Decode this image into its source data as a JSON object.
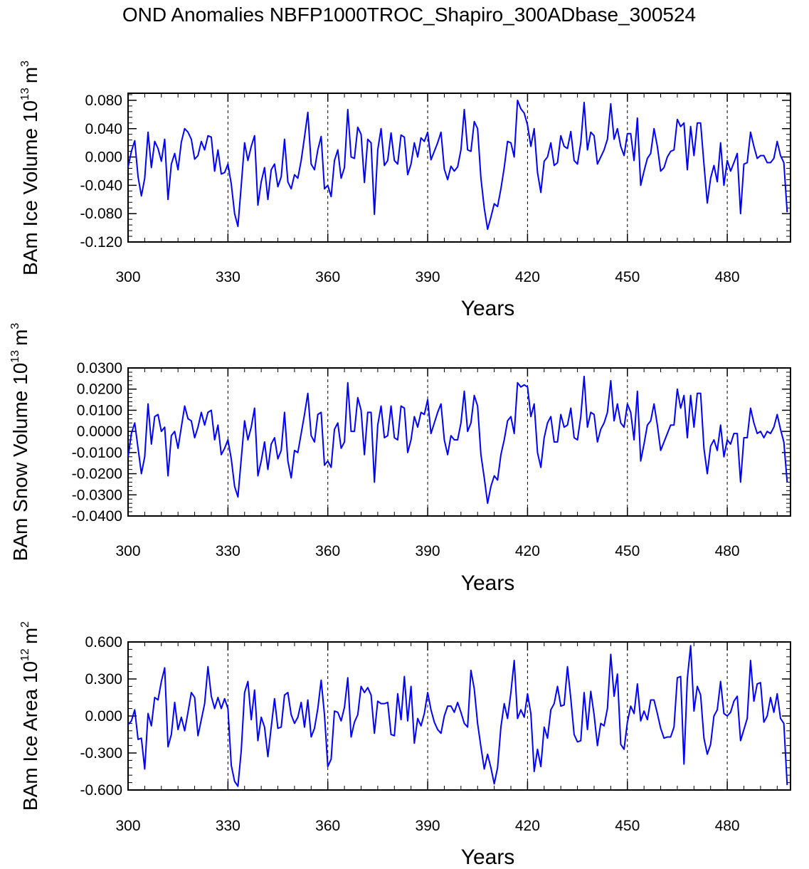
{
  "title": "OND Anomalies NBFP1000TROC_Shapiro_300ADbase_300524",
  "chart_data": [
    {
      "type": "line",
      "ylabel": "BAm Ice Volume 10",
      "ylabel_exp": "13",
      "ylabel_unit": "m",
      "ylabel_unit_exp": "3",
      "xlabel": "Years",
      "xlim": [
        300,
        499
      ],
      "ylim": [
        -0.12,
        0.09
      ],
      "yticks": [
        -0.12,
        -0.08,
        -0.04,
        0.0,
        0.04,
        0.08
      ],
      "ytick_labels": [
        "-0.120",
        "-0.080",
        "-0.040",
        "0.000",
        "0.040",
        "0.080"
      ],
      "xticks": [
        300,
        330,
        360,
        390,
        420,
        450,
        480
      ],
      "xtick_labels": [
        "300",
        "330",
        "360",
        "390",
        "420",
        "450",
        "480"
      ],
      "ref_lines": [
        330,
        360,
        390,
        420,
        450,
        480
      ],
      "series": [
        {
          "name": "BAm Ice Volume",
          "color": "#0000ff",
          "x_start": 300,
          "values": [
            -0.014,
            0.008,
            0.023,
            -0.028,
            -0.055,
            -0.03,
            0.035,
            -0.015,
            0.022,
            0.012,
            -0.006,
            0.025,
            -0.06,
            -0.01,
            0.005,
            -0.018,
            0.021,
            0.04,
            0.035,
            0.025,
            -0.003,
            0.002,
            0.022,
            0.01,
            0.03,
            0.028,
            -0.02,
            0.01,
            -0.024,
            -0.022,
            -0.01,
            -0.038,
            -0.08,
            -0.098,
            -0.04,
            0.02,
            -0.005,
            0.015,
            0.03,
            -0.068,
            -0.035,
            -0.015,
            -0.06,
            -0.018,
            -0.01,
            -0.042,
            -0.028,
            0.025,
            -0.035,
            -0.045,
            -0.025,
            -0.03,
            -0.005,
            0.028,
            0.063,
            -0.01,
            -0.018,
            0.01,
            0.029,
            -0.045,
            -0.04,
            -0.056,
            -0.005,
            0.01,
            -0.03,
            -0.015,
            0.067,
            0.0,
            -0.002,
            0.042,
            0.032,
            -0.036,
            0.025,
            0.02,
            -0.081,
            0.01,
            0.04,
            -0.012,
            -0.005,
            0.034,
            -0.005,
            -0.01,
            0.031,
            0.028,
            -0.025,
            -0.01,
            0.02,
            0.0,
            0.027,
            0.022,
            0.035,
            -0.004,
            0.008,
            0.02,
            0.035,
            -0.017,
            -0.032,
            -0.013,
            -0.02,
            -0.014,
            0.01,
            0.067,
            0.01,
            0.008,
            0.05,
            0.04,
            -0.03,
            -0.072,
            -0.102,
            -0.085,
            -0.066,
            -0.07,
            -0.045,
            -0.015,
            0.022,
            0.02,
            0.0,
            0.08,
            0.068,
            0.062,
            0.045,
            0.015,
            0.04,
            -0.022,
            -0.05,
            -0.006,
            0.0,
            0.02,
            -0.012,
            -0.008,
            0.03,
            0.015,
            0.012,
            0.036,
            -0.005,
            -0.01,
            0.02,
            0.077,
            0.01,
            0.035,
            0.03,
            -0.01,
            0.0,
            0.01,
            0.025,
            0.075,
            0.025,
            0.04,
            0.015,
            0.002,
            0.033,
            0.033,
            -0.005,
            0.055,
            -0.04,
            -0.02,
            -0.002,
            0.005,
            0.04,
            0.015,
            -0.02,
            -0.015,
            0.0,
            0.008,
            0.01,
            0.053,
            0.043,
            0.048,
            -0.018,
            0.043,
            0.002,
            0.048,
            0.048,
            -0.01,
            -0.065,
            -0.03,
            -0.012,
            -0.035,
            0.02,
            -0.04,
            -0.005,
            -0.02,
            -0.008,
            0.005,
            -0.08,
            -0.01,
            -0.008,
            0.035,
            0.015,
            -0.002,
            0.002,
            0.002,
            -0.008,
            -0.008,
            -0.002,
            0.022,
            0.002,
            -0.008,
            -0.078
          ]
        }
      ]
    },
    {
      "type": "line",
      "ylabel": "BAm Snow Volume 10",
      "ylabel_exp": "13",
      "ylabel_unit": "m",
      "ylabel_unit_exp": "3",
      "xlabel": "Years",
      "xlim": [
        300,
        499
      ],
      "ylim": [
        -0.04,
        0.03
      ],
      "yticks": [
        -0.04,
        -0.03,
        -0.02,
        -0.01,
        0.0,
        0.01,
        0.02,
        0.03
      ],
      "ytick_labels": [
        "-0.0400",
        "-0.0300",
        "-0.0200",
        "-0.0100",
        "0.0000",
        "0.0100",
        "0.0200",
        "0.0300"
      ],
      "xticks": [
        300,
        330,
        360,
        390,
        420,
        450,
        480
      ],
      "xtick_labels": [
        "300",
        "330",
        "360",
        "390",
        "420",
        "450",
        "480"
      ],
      "ref_lines": [
        330,
        360,
        390,
        420,
        450,
        480
      ],
      "series": [
        {
          "name": "BAm Snow Volume",
          "color": "#0000ff",
          "x_start": 300,
          "values": [
            -0.012,
            -0.001,
            0.004,
            -0.008,
            -0.02,
            -0.012,
            0.013,
            -0.006,
            0.007,
            0.008,
            0.0,
            0.002,
            -0.021,
            -0.002,
            0.0,
            -0.008,
            0.002,
            0.012,
            0.006,
            0.005,
            -0.003,
            0.002,
            0.009,
            0.003,
            0.009,
            0.01,
            -0.004,
            0.003,
            -0.011,
            -0.008,
            -0.004,
            -0.013,
            -0.026,
            -0.031,
            -0.013,
            0.005,
            -0.004,
            0.002,
            0.011,
            -0.021,
            -0.014,
            -0.005,
            -0.018,
            -0.006,
            -0.003,
            -0.013,
            -0.009,
            0.009,
            -0.014,
            -0.022,
            -0.009,
            -0.01,
            -0.001,
            0.008,
            0.018,
            -0.002,
            -0.005,
            0.008,
            0.009,
            -0.016,
            -0.014,
            -0.017,
            0.001,
            0.004,
            -0.008,
            -0.005,
            0.023,
            0.0,
            0.0,
            0.016,
            0.01,
            -0.011,
            0.009,
            0.009,
            -0.024,
            0.003,
            0.012,
            -0.003,
            -0.002,
            0.012,
            -0.003,
            -0.004,
            0.012,
            0.011,
            -0.01,
            -0.004,
            0.007,
            0.002,
            0.009,
            0.008,
            0.015,
            -0.001,
            0.004,
            0.009,
            0.013,
            -0.004,
            -0.011,
            -0.002,
            -0.004,
            -0.004,
            0.004,
            0.019,
            0.0,
            0.004,
            0.017,
            0.012,
            -0.011,
            -0.022,
            -0.034,
            -0.026,
            -0.021,
            -0.023,
            -0.011,
            -0.004,
            0.005,
            0.007,
            -0.001,
            0.023,
            0.021,
            0.022,
            0.021,
            0.007,
            0.013,
            -0.01,
            -0.017,
            -0.003,
            0.004,
            0.007,
            -0.005,
            -0.005,
            0.008,
            0.002,
            0.003,
            0.011,
            -0.003,
            -0.004,
            0.007,
            0.026,
            0.002,
            0.009,
            0.008,
            -0.005,
            0.001,
            0.004,
            0.009,
            0.024,
            0.005,
            0.013,
            0.004,
            0.002,
            0.013,
            0.009,
            -0.004,
            0.019,
            -0.014,
            -0.006,
            0.003,
            0.005,
            0.013,
            0.003,
            -0.009,
            -0.005,
            -0.001,
            0.003,
            0.003,
            0.02,
            0.011,
            0.017,
            -0.003,
            0.017,
            0.002,
            0.018,
            0.018,
            -0.008,
            -0.02,
            -0.007,
            -0.004,
            -0.009,
            0.003,
            -0.012,
            -0.004,
            -0.006,
            -0.001,
            -0.001,
            -0.024,
            -0.003,
            -0.003,
            0.011,
            0.004,
            -0.001,
            0.0,
            -0.003,
            0.0,
            -0.001,
            0.002,
            0.008,
            0.001,
            -0.005,
            -0.024
          ]
        }
      ]
    },
    {
      "type": "line",
      "ylabel": "BAm Ice Area 10",
      "ylabel_exp": "12",
      "ylabel_unit": "m",
      "ylabel_unit_exp": "2",
      "xlabel": "Years",
      "xlim": [
        300,
        499
      ],
      "ylim": [
        -0.6,
        0.6
      ],
      "yticks": [
        -0.6,
        -0.3,
        0.0,
        0.3,
        0.6
      ],
      "ytick_labels": [
        "-0.600",
        "-0.300",
        "0.000",
        "0.300",
        "0.600"
      ],
      "xticks": [
        300,
        330,
        360,
        390,
        420,
        450,
        480
      ],
      "xtick_labels": [
        "300",
        "330",
        "360",
        "390",
        "420",
        "450",
        "480"
      ],
      "ref_lines": [
        330,
        360,
        390,
        420,
        450,
        480
      ],
      "series": [
        {
          "name": "BAm Ice Area",
          "color": "#0000ff",
          "x_start": 300,
          "values": [
            -0.07,
            -0.04,
            0.05,
            -0.19,
            -0.18,
            -0.43,
            0.02,
            -0.08,
            0.15,
            0.13,
            0.28,
            0.39,
            -0.25,
            -0.15,
            0.11,
            -0.11,
            -0.01,
            -0.12,
            0.03,
            0.19,
            0.15,
            -0.16,
            -0.03,
            0.1,
            0.4,
            0.16,
            0.06,
            0.15,
            0.06,
            0.14,
            0.06,
            -0.4,
            -0.53,
            -0.57,
            -0.28,
            0.19,
            0.28,
            -0.03,
            0.21,
            -0.2,
            -0.01,
            -0.09,
            -0.33,
            -0.09,
            0.14,
            -0.1,
            -0.09,
            0.17,
            0.19,
            0.01,
            -0.06,
            -0.01,
            0.11,
            -0.09,
            0.13,
            -0.17,
            -0.1,
            0.06,
            0.29,
            0.01,
            -0.41,
            -0.35,
            0.04,
            0.03,
            -0.04,
            0.07,
            0.31,
            -0.17,
            -0.05,
            0.01,
            0.24,
            0.19,
            0.23,
            0.17,
            -0.14,
            0.12,
            0.1,
            0.1,
            0.11,
            -0.15,
            -0.16,
            0.18,
            -0.03,
            0.32,
            -0.04,
            0.24,
            -0.22,
            -0.02,
            -0.08,
            0.02,
            0.19,
            0.05,
            -0.05,
            -0.11,
            -0.14,
            0.0,
            0.08,
            0.08,
            0.03,
            0.11,
            0.03,
            -0.06,
            -0.09,
            0.37,
            0.22,
            -0.06,
            -0.25,
            -0.43,
            -0.31,
            -0.42,
            -0.55,
            -0.42,
            -0.09,
            0.1,
            -0.02,
            0.19,
            0.45,
            -0.02,
            0.05,
            -0.01,
            0.18,
            0.02,
            -0.45,
            -0.27,
            -0.41,
            -0.09,
            -0.18,
            0.05,
            0.1,
            0.24,
            0.08,
            0.09,
            0.4,
            0.14,
            -0.15,
            -0.21,
            -0.2,
            0.19,
            -0.11,
            0.2,
            0.01,
            -0.24,
            -0.06,
            -0.08,
            0.06,
            0.5,
            0.16,
            0.34,
            -0.23,
            -0.27,
            -0.05,
            0.08,
            0.02,
            0.26,
            -0.04,
            0.04,
            -0.03,
            0.13,
            0.13,
            0.02,
            -0.1,
            -0.18,
            -0.17,
            -0.17,
            -0.09,
            0.31,
            0.32,
            -0.39,
            0.3,
            0.57,
            0.04,
            0.24,
            0.17,
            -0.18,
            -0.31,
            -0.23,
            0.0,
            0.05,
            0.28,
            0.02,
            0.0,
            0.03,
            0.12,
            0.16,
            -0.2,
            -0.11,
            -0.02,
            0.45,
            0.12,
            0.26,
            0.27,
            -0.05,
            0.0,
            0.15,
            0.03,
            0.18,
            -0.02,
            -0.06,
            -0.56
          ]
        }
      ]
    }
  ]
}
